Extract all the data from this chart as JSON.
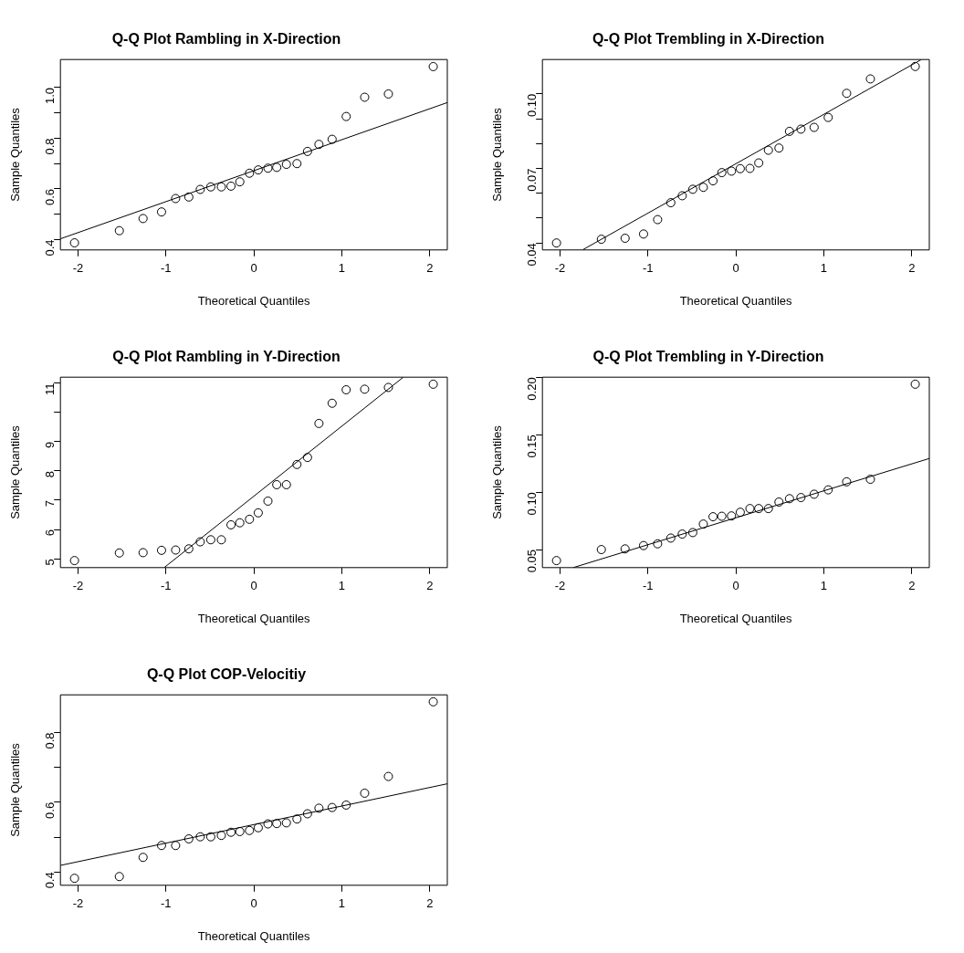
{
  "chart_data": [
    {
      "type": "scatter",
      "title": "Q-Q Plot Rambling in X-Direction",
      "xlabel": "Theoretical Quantiles",
      "ylabel": "Sample Quantiles",
      "marker": "circle",
      "xlim": [
        -2.2,
        2.2
      ],
      "xticks": [
        -2,
        -1,
        0,
        1,
        2
      ],
      "ylim": [
        0.359,
        1.111
      ],
      "yticks": [
        0.4,
        {
          "value": 0.5,
          "label": null
        },
        0.6,
        {
          "value": 0.7,
          "label": null
        },
        0.8,
        {
          "value": 0.9,
          "label": null
        },
        {
          "value": 1.0,
          "label": "1.0"
        }
      ],
      "x": [
        -2.04,
        -1.53,
        -1.26,
        -1.05,
        -0.89,
        -0.74,
        -0.61,
        -0.49,
        -0.37,
        -0.26,
        -0.16,
        -0.05,
        0.05,
        0.16,
        0.26,
        0.37,
        0.49,
        0.61,
        0.74,
        0.89,
        1.05,
        1.26,
        1.53,
        2.04
      ],
      "series": [
        {
          "type": "scatter",
          "color": "#000000",
          "values": [
            0.387,
            0.435,
            0.483,
            0.509,
            0.562,
            0.568,
            0.598,
            0.608,
            0.608,
            0.611,
            0.628,
            0.662,
            0.675,
            0.682,
            0.685,
            0.697,
            0.7,
            0.748,
            0.776,
            0.796,
            0.886,
            0.962,
            0.975,
            1.083
          ]
        },
        {
          "type": "line",
          "color": "#000000",
          "marker": "none",
          "x": [
            -2.2,
            2.2
          ],
          "values": [
            0.403,
            0.941
          ]
        }
      ]
    },
    {
      "type": "scatter",
      "title": "Q-Q Plot Trembling in X-Direction",
      "xlabel": "Theoretical Quantiles",
      "ylabel": "Sample Quantiles",
      "marker": "circle",
      "xlim": [
        -2.2,
        2.2
      ],
      "xticks": [
        -2,
        -1,
        0,
        1,
        2
      ],
      "ylim": [
        0.0372,
        0.1138
      ],
      "yticks": [
        0.04,
        {
          "value": 0.05,
          "label": null
        },
        {
          "value": 0.06,
          "label": null
        },
        0.07,
        {
          "value": 0.08,
          "label": null
        },
        {
          "value": 0.09,
          "label": null
        },
        {
          "value": 0.1,
          "label": "0.10"
        }
      ],
      "x": [
        -2.04,
        -1.53,
        -1.26,
        -1.05,
        -0.89,
        -0.74,
        -0.61,
        -0.49,
        -0.37,
        -0.26,
        -0.16,
        -0.05,
        0.05,
        0.16,
        0.26,
        0.37,
        0.49,
        0.61,
        0.74,
        0.89,
        1.05,
        1.26,
        1.53,
        2.04
      ],
      "series": [
        {
          "type": "scatter",
          "color": "#000000",
          "values": [
            0.04,
            0.0415,
            0.0419,
            0.0436,
            0.0494,
            0.0562,
            0.059,
            0.0616,
            0.0624,
            0.065,
            0.0683,
            0.0689,
            0.0699,
            0.07,
            0.0722,
            0.0773,
            0.0782,
            0.0849,
            0.0858,
            0.0865,
            0.0905,
            0.1002,
            0.106,
            0.111
          ]
        },
        {
          "type": "line",
          "color": "#000000",
          "marker": "none",
          "x": [
            -1.74,
            2.11
          ],
          "values": [
            0.0373,
            0.1138
          ]
        }
      ]
    },
    {
      "type": "scatter",
      "title": "Q-Q Plot Rambling in Y-Direction",
      "xlabel": "Theoretical Quantiles",
      "ylabel": "Sample Quantiles",
      "marker": "circle",
      "xlim": [
        -2.2,
        2.2
      ],
      "xticks": [
        -2,
        -1,
        0,
        1,
        2
      ],
      "ylim": [
        4.7,
        11.2
      ],
      "yticks": [
        5,
        6,
        7,
        8,
        9,
        {
          "value": 10,
          "label": null
        },
        11
      ],
      "x": [
        -2.04,
        -1.53,
        -1.26,
        -1.05,
        -0.89,
        -0.74,
        -0.61,
        -0.49,
        -0.37,
        -0.26,
        -0.16,
        -0.05,
        0.05,
        0.16,
        0.26,
        0.37,
        0.49,
        0.61,
        0.74,
        0.89,
        1.05,
        1.26,
        1.53,
        2.04
      ],
      "series": [
        {
          "type": "scatter",
          "color": "#000000",
          "values": [
            4.94,
            5.2,
            5.21,
            5.29,
            5.3,
            5.34,
            5.58,
            5.65,
            5.65,
            6.16,
            6.23,
            6.35,
            6.57,
            6.97,
            7.53,
            7.53,
            8.22,
            8.46,
            9.62,
            10.31,
            10.77,
            10.79,
            10.85,
            10.96
          ]
        },
        {
          "type": "line",
          "color": "#000000",
          "marker": "none",
          "x": [
            -1.02,
            1.7
          ],
          "values": [
            4.7,
            11.2
          ]
        }
      ]
    },
    {
      "type": "scatter",
      "title": "Q-Q Plot Trembling in Y-Direction",
      "xlabel": "Theoretical Quantiles",
      "ylabel": "Sample Quantiles",
      "marker": "circle",
      "xlim": [
        -2.2,
        2.2
      ],
      "xticks": [
        -2,
        -1,
        0,
        1,
        2
      ],
      "ylim": [
        0.0343,
        0.2001
      ],
      "yticks": [
        0.05,
        {
          "value": 0.1,
          "label": "0.10"
        },
        0.15,
        {
          "value": 0.2,
          "label": "0.20"
        }
      ],
      "x": [
        -2.04,
        -1.53,
        -1.26,
        -1.05,
        -0.89,
        -0.74,
        -0.61,
        -0.49,
        -0.37,
        -0.26,
        -0.16,
        -0.05,
        0.05,
        0.16,
        0.26,
        0.37,
        0.49,
        0.61,
        0.74,
        0.89,
        1.05,
        1.26,
        1.53,
        2.04
      ],
      "series": [
        {
          "type": "scatter",
          "color": "#000000",
          "values": [
            0.0404,
            0.05,
            0.0506,
            0.0535,
            0.055,
            0.06,
            0.0635,
            0.0648,
            0.0722,
            0.0786,
            0.079,
            0.0793,
            0.0825,
            0.0857,
            0.0857,
            0.0857,
            0.0914,
            0.0943,
            0.0953,
            0.0982,
            0.102,
            0.109,
            0.1112,
            0.194
          ]
        },
        {
          "type": "line",
          "color": "#000000",
          "marker": "none",
          "x": [
            -1.85,
            2.2
          ],
          "values": [
            0.0343,
            0.1293
          ]
        }
      ]
    },
    {
      "type": "scatter",
      "title": "Q-Q Plot COP-Velocitiy",
      "xlabel": "Theoretical Quantiles",
      "ylabel": "Sample Quantiles",
      "marker": "circle",
      "xlim": [
        -2.2,
        2.2
      ],
      "xticks": [
        -2,
        -1,
        0,
        1,
        2
      ],
      "ylim": [
        0.362,
        0.908
      ],
      "yticks": [
        0.4,
        {
          "value": 0.5,
          "label": null
        },
        0.6,
        {
          "value": 0.7,
          "label": null
        },
        0.8
      ],
      "x": [
        -2.04,
        -1.53,
        -1.26,
        -1.05,
        -0.89,
        -0.74,
        -0.61,
        -0.49,
        -0.37,
        -0.26,
        -0.16,
        -0.05,
        0.05,
        0.16,
        0.26,
        0.37,
        0.49,
        0.61,
        0.74,
        0.89,
        1.05,
        1.26,
        1.53,
        2.04
      ],
      "series": [
        {
          "type": "scatter",
          "color": "#000000",
          "values": [
            0.382,
            0.387,
            0.442,
            0.476,
            0.476,
            0.495,
            0.501,
            0.501,
            0.505,
            0.514,
            0.516,
            0.519,
            0.527,
            0.538,
            0.539,
            0.541,
            0.552,
            0.567,
            0.583,
            0.585,
            0.592,
            0.626,
            0.674,
            0.888
          ]
        },
        {
          "type": "line",
          "color": "#000000",
          "marker": "none",
          "x": [
            -2.2,
            2.2
          ],
          "values": [
            0.419,
            0.653
          ]
        }
      ]
    }
  ]
}
